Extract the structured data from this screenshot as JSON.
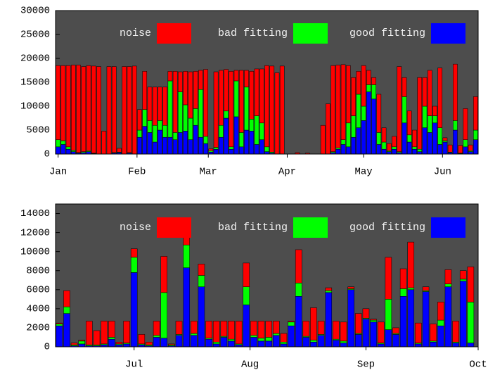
{
  "chart_data": [
    {
      "type": "bar",
      "stacked": true,
      "series": [
        {
          "name": "noise",
          "color": "#ff0000",
          "values": [
            15500,
            15700,
            17000,
            17800,
            18300,
            17800,
            17800,
            18200,
            18300,
            4800,
            18300,
            18000,
            800,
            18300,
            18000,
            18400,
            4300,
            8000,
            7000,
            8000,
            7000,
            8000,
            2000,
            12800,
            4200,
            7000,
            9700,
            7800,
            4000,
            14000,
            400,
            15800,
            11500,
            8700,
            15800,
            2200,
            13000,
            3500,
            10000,
            9800,
            11300,
            17000,
            18000,
            17000,
            18400,
            0,
            0,
            300,
            0,
            200,
            0,
            0,
            6000,
            10500,
            18000,
            17300,
            15700,
            12000,
            8000,
            4800,
            8500,
            3000,
            1500,
            8000,
            3000,
            1500,
            2200,
            17800,
            4000,
            5000,
            3500,
            15000,
            6000,
            9500,
            2000,
            12500,
            600,
            1500,
            11800,
            1600,
            6500,
            1200,
            7000
          ]
        },
        {
          "name": "bad fitting",
          "color": "#00ff00",
          "values": [
            1500,
            800,
            500,
            300,
            100,
            200,
            200,
            100,
            0,
            0,
            0,
            100,
            100,
            0,
            100,
            0,
            1500,
            3500,
            2500,
            3500,
            2000,
            2500,
            11800,
            1500,
            8500,
            5500,
            4500,
            3500,
            10000,
            1500,
            300,
            400,
            2500,
            1500,
            500,
            7500,
            3000,
            9000,
            2500,
            6000,
            3500,
            1000,
            200,
            0,
            0,
            0,
            0,
            0,
            0,
            0,
            0,
            0,
            0,
            0,
            200,
            300,
            1000,
            5000,
            4500,
            7000,
            3000,
            1500,
            3000,
            2500,
            1500,
            200,
            500,
            200,
            5500,
            1500,
            500,
            500,
            4500,
            3500,
            1500,
            3500,
            300,
            100,
            2000,
            100,
            1500,
            200,
            2000
          ]
        },
        {
          "name": "good fitting",
          "color": "#0000ff",
          "values": [
            1500,
            2000,
            1000,
            500,
            200,
            300,
            500,
            100,
            0,
            0,
            0,
            200,
            300,
            0,
            200,
            0,
            3500,
            5800,
            4500,
            2500,
            5000,
            3500,
            3500,
            3000,
            4500,
            4800,
            3000,
            6000,
            3500,
            2200,
            400,
            1000,
            3500,
            7500,
            1000,
            7800,
            1500,
            5000,
            4800,
            2000,
            3000,
            500,
            200,
            0,
            0,
            0,
            0,
            0,
            0,
            0,
            0,
            0,
            0,
            0,
            300,
            1000,
            2000,
            1500,
            3500,
            5500,
            7000,
            13000,
            11500,
            2000,
            1000,
            500,
            1000,
            300,
            6500,
            2500,
            1000,
            500,
            5500,
            4500,
            6500,
            2000,
            2500,
            300,
            5000,
            100,
            1500,
            500,
            3000
          ]
        }
      ],
      "x": [
        1,
        3,
        5,
        7,
        9,
        11,
        13,
        15,
        17,
        19,
        21,
        23,
        25,
        27,
        29,
        31,
        33,
        35,
        37,
        39,
        41,
        43,
        45,
        47,
        49,
        51,
        53,
        55,
        57,
        59,
        61,
        63,
        65,
        67,
        69,
        71,
        73,
        75,
        77,
        79,
        81,
        83,
        85,
        87,
        89,
        91,
        93,
        95,
        97,
        99,
        101,
        103,
        105,
        107,
        109,
        111,
        113,
        115,
        117,
        119,
        121,
        123,
        125,
        127,
        129,
        131,
        133,
        135,
        137,
        139,
        141,
        143,
        145,
        147,
        149,
        151,
        153,
        155,
        157,
        159,
        161,
        163,
        165
      ],
      "xlim": [
        0,
        166
      ],
      "xticks": [
        {
          "value": 1,
          "label": "Jan"
        },
        {
          "value": 32,
          "label": "Feb"
        },
        {
          "value": 60,
          "label": "Mar"
        },
        {
          "value": 91,
          "label": "Apr"
        },
        {
          "value": 121,
          "label": "May"
        },
        {
          "value": 152,
          "label": "Jun"
        }
      ],
      "ylim": [
        0,
        30000
      ],
      "yticks": [
        0,
        5000,
        10000,
        15000,
        20000,
        25000,
        30000
      ]
    },
    {
      "type": "bar",
      "stacked": true,
      "series": [
        {
          "name": "noise",
          "color": "#ff0000",
          "values": [
            100,
            1700,
            200,
            100,
            2500,
            1500,
            2400,
            1700,
            200,
            2300,
            900,
            1000,
            300,
            1500,
            3800,
            100,
            1400,
            1400,
            1300,
            1200,
            1800,
            2200,
            1600,
            1900,
            2400,
            2500,
            1500,
            1800,
            1700,
            1300,
            900,
            100,
            3500,
            1600,
            3400,
            1400,
            300,
            1900,
            2000,
            200,
            2100,
            1000,
            100,
            2200,
            4400,
            600,
            2100,
            4800,
            2100,
            400,
            1800,
            1900,
            1500,
            2200,
            900,
            3700
          ]
        },
        {
          "name": "bad fitting",
          "color": "#00ff00",
          "values": [
            200,
            700,
            100,
            300,
            100,
            100,
            100,
            200,
            100,
            100,
            1600,
            100,
            100,
            200,
            4800,
            100,
            100,
            2400,
            200,
            1200,
            100,
            200,
            100,
            200,
            100,
            1900,
            200,
            300,
            400,
            200,
            200,
            400,
            1400,
            100,
            200,
            100,
            200,
            100,
            200,
            100,
            100,
            100,
            200,
            100,
            3200,
            100,
            800,
            200,
            100,
            100,
            100,
            600,
            300,
            100,
            200,
            4300
          ]
        },
        {
          "name": "good fitting",
          "color": "#0000ff",
          "values": [
            2200,
            3500,
            100,
            300,
            100,
            100,
            200,
            800,
            200,
            300,
            7800,
            200,
            100,
            1000,
            900,
            100,
            1200,
            8300,
            1200,
            6300,
            800,
            300,
            1000,
            600,
            200,
            4400,
            1000,
            600,
            600,
            1200,
            300,
            2200,
            5300,
            1000,
            500,
            1200,
            5700,
            700,
            400,
            6000,
            1300,
            2900,
            2600,
            300,
            1800,
            1300,
            5300,
            6000,
            300,
            5800,
            500,
            2200,
            6300,
            400,
            6900,
            400
          ]
        }
      ],
      "x": [
        162,
        164,
        166,
        168,
        170,
        172,
        174,
        176,
        178,
        180,
        182,
        184,
        186,
        188,
        190,
        192,
        194,
        196,
        198,
        200,
        202,
        204,
        206,
        208,
        210,
        212,
        214,
        216,
        218,
        220,
        222,
        224,
        226,
        228,
        230,
        232,
        234,
        236,
        238,
        240,
        242,
        244,
        246,
        248,
        250,
        252,
        254,
        256,
        258,
        260,
        262,
        264,
        266,
        268,
        270,
        272
      ],
      "xlim": [
        161,
        274
      ],
      "xticks": [
        {
          "value": 182,
          "label": "Jul"
        },
        {
          "value": 213,
          "label": "Aug"
        },
        {
          "value": 244,
          "label": "Sep"
        },
        {
          "value": 274,
          "label": "Oct"
        }
      ],
      "ylim": [
        0,
        15000
      ],
      "yticks": [
        0,
        2000,
        4000,
        6000,
        8000,
        10000,
        12000,
        14000
      ]
    }
  ]
}
